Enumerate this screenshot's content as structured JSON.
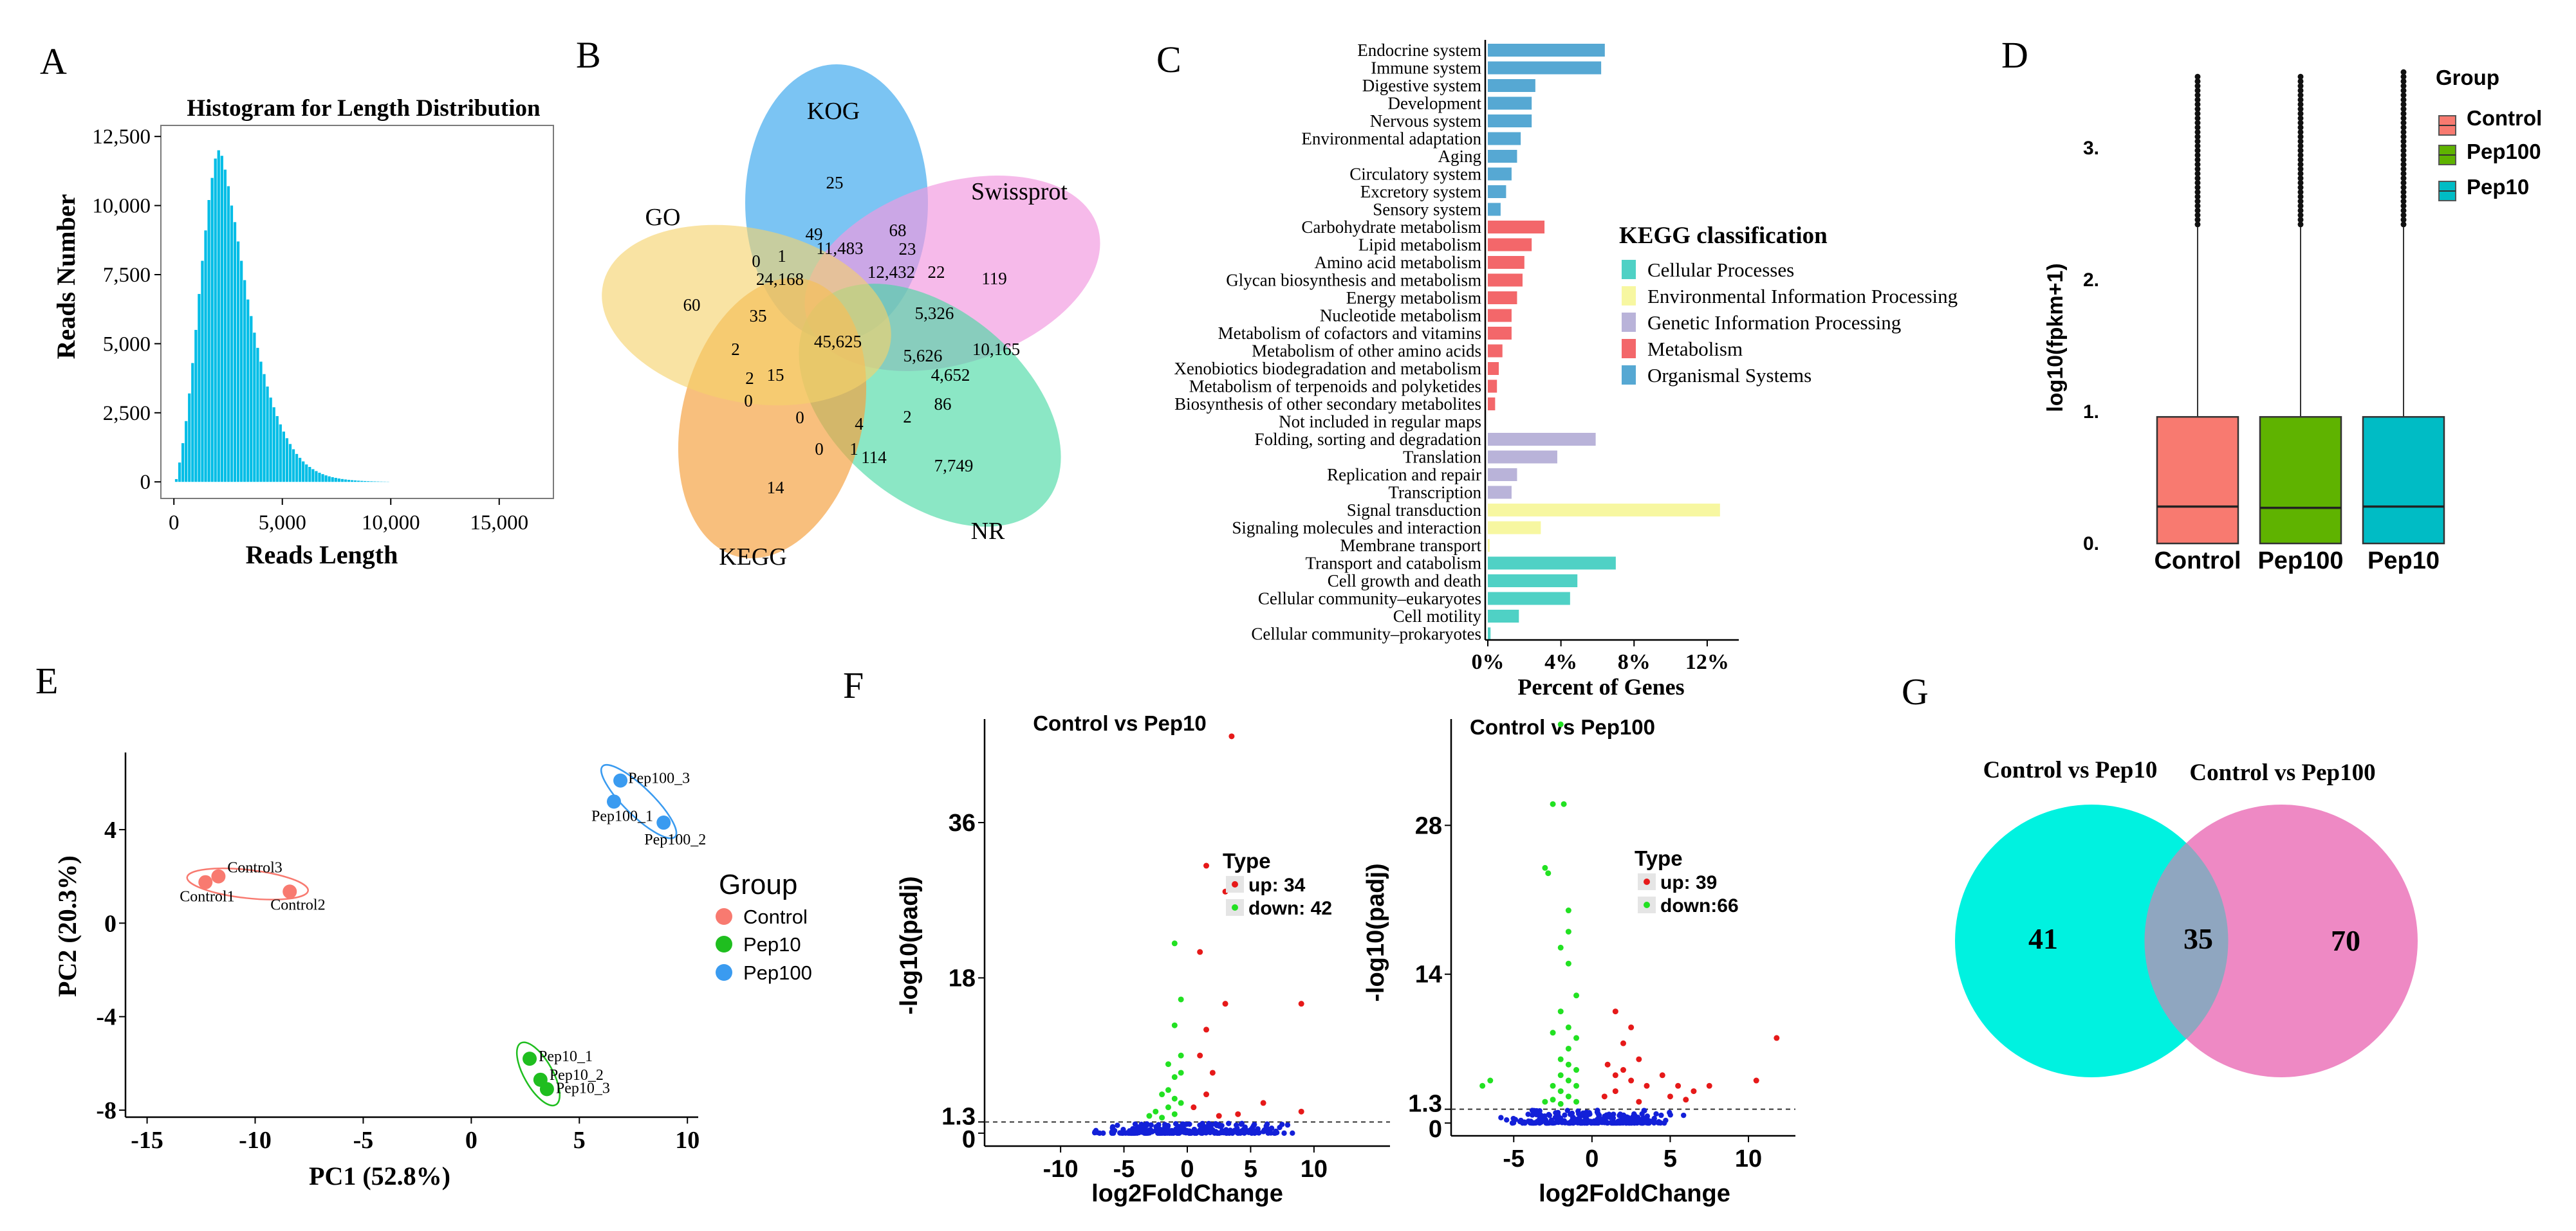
{
  "panel_labels": [
    "A",
    "B",
    "C",
    "D",
    "E",
    "F",
    "G"
  ],
  "colors": {
    "histogram": "#00bde6",
    "cellular": "#4fd1c5",
    "environmental": "#f7f7a1",
    "genetic": "#b9b3d9",
    "metabolism": "#f3676a",
    "organismal": "#56a8d3",
    "control": "#f87a70",
    "pep10": "#1fbe1f",
    "pep100": "#3a9bf0",
    "up": "#e61919",
    "down": "#22e122",
    "ns": "#1320d8",
    "venn_left": "#00f2e0",
    "venn_right": "#ee89c4"
  },
  "chart_data": [
    {
      "panel": "A",
      "type": "bar",
      "title": "Histogram for Length Distribution",
      "xlabel": "Reads Length",
      "ylabel": "Reads Number",
      "xlim": [
        -600,
        17500
      ],
      "ylim": [
        -600,
        12900
      ],
      "xticks": [
        0,
        5000,
        10000,
        15000
      ],
      "xtick_labels": [
        "0",
        "5,000",
        "10,000",
        "15,000"
      ],
      "yticks": [
        0,
        2500,
        5000,
        7500,
        10000,
        12500
      ],
      "ytick_labels": [
        "0",
        "2,500",
        "5,000",
        "7,500",
        "10,000",
        "12,500"
      ],
      "bin_width": 150,
      "bin_start": 50,
      "values": [
        100,
        700,
        1400,
        2200,
        3200,
        4300,
        5500,
        6800,
        8000,
        9100,
        10200,
        11000,
        11700,
        12000,
        11800,
        11300,
        10700,
        10000,
        9400,
        8700,
        8000,
        7300,
        6600,
        6000,
        5400,
        4850,
        4350,
        3900,
        3450,
        3050,
        2700,
        2380,
        2080,
        1820,
        1580,
        1370,
        1180,
        1010,
        870,
        740,
        630,
        540,
        460,
        390,
        330,
        280,
        235,
        200,
        170,
        145,
        122,
        103,
        87,
        73,
        61,
        51,
        43,
        36,
        30,
        25,
        21,
        17,
        14,
        11,
        9,
        7
      ]
    },
    {
      "panel": "B",
      "type": "venn",
      "sets": [
        "KOG",
        "Swissprot",
        "NR",
        "KEGG",
        "GO"
      ],
      "region_values": [
        "25",
        "119",
        "7,749",
        "14",
        "60",
        "68",
        "23",
        "49",
        "1",
        "0",
        "11,483",
        "24,168",
        "12,432",
        "22",
        "35",
        "5,326",
        "45,625",
        "10,165",
        "2",
        "5,626",
        "4,652",
        "2",
        "15",
        "86",
        "0",
        "0",
        "4",
        "2",
        "1",
        "0",
        "114"
      ]
    },
    {
      "panel": "C",
      "type": "bar",
      "orientation": "horizontal",
      "xlabel": "Percent of Genes",
      "xticks": [
        0,
        4,
        8,
        12
      ],
      "xtick_labels": [
        "0%",
        "4%",
        "8%",
        "12%"
      ],
      "xlim": [
        0,
        13.2
      ],
      "legend_title": "KEGG classification",
      "legend": [
        "Cellular Processes",
        "Environmental Information Processing",
        "Genetic Information Processing",
        "Metabolism",
        "Organismal Systems"
      ],
      "categories": [
        "Endocrine system",
        "Immune system",
        "Digestive system",
        "Development",
        "Nervous system",
        "Environmental adaptation",
        "Aging",
        "Circulatory system",
        "Excretory system",
        "Sensory system",
        "Carbohydrate metabolism",
        "Lipid metabolism",
        "Amino acid metabolism",
        "Glycan biosynthesis and metabolism",
        "Energy metabolism",
        "Nucleotide metabolism",
        "Metabolism of cofactors and vitamins",
        "Metabolism of other amino acids",
        "Xenobiotics biodegradation and metabolism",
        "Metabolism of terpenoids and polyketides",
        "Biosynthesis of other secondary metabolites",
        "Not included in regular maps",
        "Folding, sorting and degradation",
        "Translation",
        "Replication and repair",
        "Transcription",
        "Signal transduction",
        "Signaling molecules and interaction",
        "Membrane transport",
        "Transport and catabolism",
        "Cell growth and death",
        "Cellular community–eukaryotes",
        "Cell motility",
        "Cellular community–prokaryotes"
      ],
      "values": [
        6.4,
        6.2,
        2.6,
        2.4,
        2.4,
        1.8,
        1.6,
        1.3,
        1.0,
        0.7,
        3.1,
        2.4,
        2.0,
        1.9,
        1.6,
        1.3,
        1.3,
        0.8,
        0.6,
        0.5,
        0.4,
        0.0,
        5.9,
        3.8,
        1.6,
        1.3,
        12.7,
        2.9,
        0.1,
        7.0,
        4.9,
        4.5,
        1.7,
        0.15
      ],
      "groups": [
        "organismal",
        "organismal",
        "organismal",
        "organismal",
        "organismal",
        "organismal",
        "organismal",
        "organismal",
        "organismal",
        "organismal",
        "metabolism",
        "metabolism",
        "metabolism",
        "metabolism",
        "metabolism",
        "metabolism",
        "metabolism",
        "metabolism",
        "metabolism",
        "metabolism",
        "metabolism",
        "none",
        "genetic",
        "genetic",
        "genetic",
        "genetic",
        "environmental",
        "environmental",
        "environmental",
        "cellular",
        "cellular",
        "cellular",
        "cellular",
        "cellular"
      ]
    },
    {
      "panel": "D",
      "type": "box",
      "ylabel": "log10(fpkm+1)",
      "categories": [
        "Control",
        "Pep100",
        "Pep10"
      ],
      "yticks": [
        0,
        1,
        2,
        3
      ],
      "ytick_labels": [
        "0.",
        "1.",
        "2.",
        "3."
      ],
      "ylim": [
        -0.1,
        3.7
      ],
      "legend_title": "Group",
      "legend": [
        "Control",
        "Pep100",
        "Pep10"
      ],
      "box_colors": [
        "#f87a70",
        "#5fb300",
        "#00bcc5"
      ],
      "q1": [
        0.0,
        0.0,
        0.0
      ],
      "median": [
        0.28,
        0.27,
        0.28
      ],
      "q3": [
        0.96,
        0.96,
        0.96
      ],
      "whisker_high": [
        2.4,
        2.4,
        2.4
      ],
      "outlier_max": [
        3.55,
        3.55,
        3.6
      ]
    },
    {
      "panel": "E",
      "type": "scatter",
      "xlabel": "PC1 (52.8%)",
      "ylabel": "PC2 (20.3%)",
      "xticks": [
        -15,
        -10,
        -5,
        0,
        5,
        10
      ],
      "xtick_labels": [
        "-15",
        "-10",
        "-5",
        "0",
        "5",
        "10"
      ],
      "yticks": [
        -8,
        -4,
        0,
        4
      ],
      "ytick_labels": [
        "-8",
        "-4",
        "0",
        "4"
      ],
      "xlim": [
        -16,
        10.5
      ],
      "ylim": [
        -8.3,
        7.3
      ],
      "legend_title": "Group",
      "legend": [
        "Control",
        "Pep10",
        "Pep100"
      ],
      "points": [
        {
          "label": "Control1",
          "group": "control",
          "x": -12.3,
          "y": 1.75
        },
        {
          "label": "Control3",
          "group": "control",
          "x": -11.7,
          "y": 2.0
        },
        {
          "label": "Control2",
          "group": "control",
          "x": -8.4,
          "y": 1.35
        },
        {
          "label": "Pep100_3",
          "group": "pep100",
          "x": 6.9,
          "y": 6.1
        },
        {
          "label": "Pep100_1",
          "group": "pep100",
          "x": 6.6,
          "y": 5.2
        },
        {
          "label": "Pep100_2",
          "group": "pep100",
          "x": 8.9,
          "y": 4.3
        },
        {
          "label": "Pep10_1",
          "group": "pep10",
          "x": 2.7,
          "y": -5.8
        },
        {
          "label": "Pep10_2",
          "group": "pep10",
          "x": 3.2,
          "y": -6.7
        },
        {
          "label": "Pep10_3",
          "group": "pep10",
          "x": 3.5,
          "y": -7.1
        }
      ]
    },
    {
      "panel": "F",
      "type": "scatter",
      "title": "Control vs Pep10",
      "xlabel": "log2FoldChange",
      "ylabel": "-log10(padj)",
      "xticks": [
        -10,
        -5,
        0,
        5,
        10
      ],
      "xtick_labels": [
        "-10",
        "-5",
        "0",
        "5",
        "10"
      ],
      "yticks": [
        0,
        1.3,
        18,
        36
      ],
      "ytick_labels": [
        "0",
        "1.3",
        "18",
        "36"
      ],
      "xlim": [
        -16,
        16
      ],
      "ylim": [
        -1.5,
        48
      ],
      "threshold": 1.3,
      "legend_title": "Type",
      "legend": [
        "up: 34",
        "down: 42"
      ],
      "up": [
        [
          3.5,
          46
        ],
        [
          1.5,
          31
        ],
        [
          3.0,
          28
        ],
        [
          1.0,
          21
        ],
        [
          3.0,
          15
        ],
        [
          1.5,
          12
        ],
        [
          9.0,
          15
        ],
        [
          1.0,
          9
        ],
        [
          2.0,
          7
        ],
        [
          1.5,
          4.5
        ],
        [
          6.0,
          3.5
        ],
        [
          9.0,
          2.5
        ],
        [
          0.5,
          3.0
        ],
        [
          2.5,
          2.0
        ],
        [
          4.0,
          2.2
        ]
      ],
      "down": [
        [
          -1.0,
          22
        ],
        [
          -0.5,
          15.5
        ],
        [
          -1.0,
          12.5
        ],
        [
          -0.5,
          9
        ],
        [
          -1.5,
          8
        ],
        [
          -0.5,
          7
        ],
        [
          -1.0,
          6.5
        ],
        [
          -1.5,
          5
        ],
        [
          -2.0,
          4.5
        ],
        [
          -1.0,
          4
        ],
        [
          -0.5,
          3.5
        ],
        [
          -1.5,
          3
        ],
        [
          -2.5,
          2.5
        ],
        [
          -1.0,
          2.2
        ],
        [
          -3.0,
          2.0
        ],
        [
          -2.0,
          1.8
        ]
      ],
      "ns_x_range": [
        -8,
        9
      ]
    },
    {
      "panel": "F",
      "type": "scatter",
      "title": "Control vs Pep100",
      "xlabel": "log2FoldChange",
      "ylabel": "-log10(padj)",
      "xticks": [
        -5,
        0,
        5,
        10
      ],
      "xtick_labels": [
        "-5",
        "0",
        "5",
        "10"
      ],
      "yticks": [
        0,
        1.3,
        14,
        28
      ],
      "ytick_labels": [
        "0",
        "1.3",
        "14",
        "28"
      ],
      "xlim": [
        -9,
        13
      ],
      "ylim": [
        -1.2,
        38
      ],
      "threshold": 1.3,
      "legend_title": "Type",
      "legend": [
        "up: 39",
        "down:66"
      ],
      "up": [
        [
          1.5,
          10.5
        ],
        [
          2.5,
          9
        ],
        [
          2.0,
          7.5
        ],
        [
          3.0,
          6
        ],
        [
          1.0,
          5.5
        ],
        [
          2.0,
          5
        ],
        [
          1.5,
          4.5
        ],
        [
          2.5,
          4
        ],
        [
          3.5,
          3.5
        ],
        [
          4.5,
          4.5
        ],
        [
          5.5,
          3.5
        ],
        [
          6.5,
          3.0
        ],
        [
          7.5,
          3.5
        ],
        [
          11.8,
          8
        ],
        [
          10.5,
          4
        ],
        [
          1.5,
          3.0
        ],
        [
          0.8,
          2.5
        ],
        [
          5.0,
          2.5
        ],
        [
          3.0,
          2.0
        ],
        [
          6.0,
          2.2
        ]
      ],
      "down": [
        [
          -2.0,
          37.5
        ],
        [
          -2.5,
          30
        ],
        [
          -1.8,
          30
        ],
        [
          -3.0,
          24
        ],
        [
          -2.8,
          23.5
        ],
        [
          -1.5,
          20
        ],
        [
          -1.5,
          18
        ],
        [
          -2.0,
          16.5
        ],
        [
          -1.5,
          15
        ],
        [
          -1.0,
          12
        ],
        [
          -2.0,
          10.5
        ],
        [
          -1.5,
          9
        ],
        [
          -2.5,
          8.5
        ],
        [
          -1.0,
          8
        ],
        [
          -6.5,
          4.0
        ],
        [
          -7.0,
          3.5
        ],
        [
          -1.5,
          7
        ],
        [
          -2.0,
          6
        ],
        [
          -1.5,
          5.5
        ],
        [
          -1.0,
          5
        ],
        [
          -2.0,
          4.5
        ],
        [
          -1.5,
          4
        ],
        [
          -2.5,
          3.5
        ],
        [
          -1.0,
          3.5
        ],
        [
          -2.0,
          3.0
        ],
        [
          -1.5,
          2.5
        ],
        [
          -2.5,
          2.2
        ],
        [
          -1.0,
          2.0
        ],
        [
          -3.0,
          2.0
        ],
        [
          -2.0,
          1.8
        ]
      ],
      "ns_x_range": [
        -6,
        6
      ]
    },
    {
      "panel": "G",
      "type": "venn",
      "sets": [
        "Control vs Pep10",
        "Control vs Pep100"
      ],
      "region_values": [
        "41",
        "35",
        "70"
      ]
    }
  ]
}
